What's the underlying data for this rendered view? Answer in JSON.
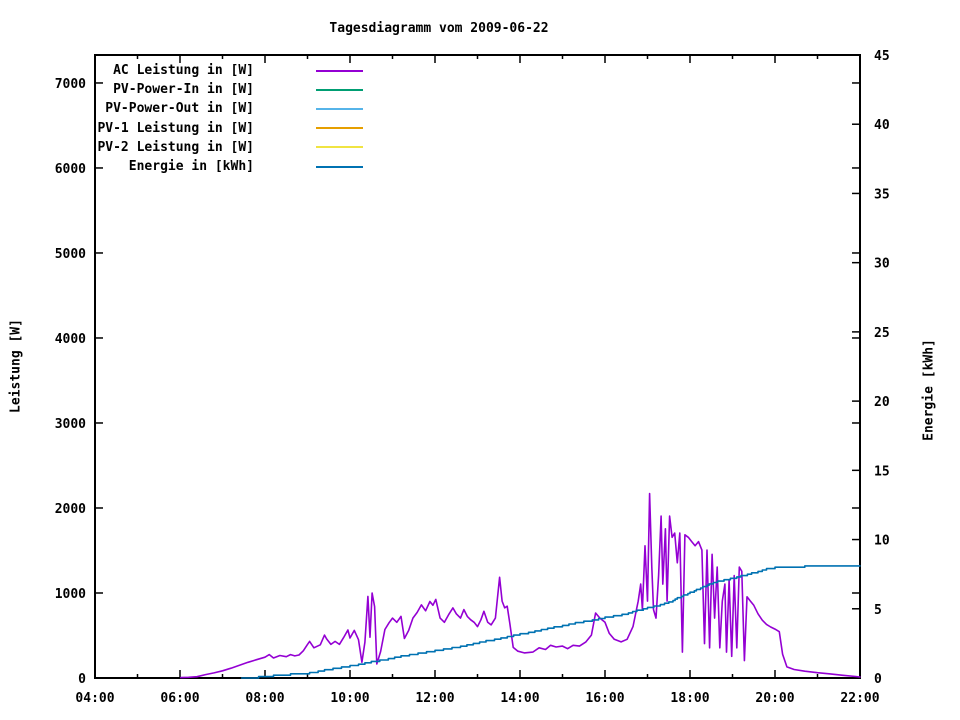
{
  "page": {
    "background": "#ffffff"
  },
  "chart": {
    "title": "Tagesdiagramm vom 2009-06-22",
    "left_axis_label": "Leistung [W]",
    "right_axis_label": "Energie [kWh]",
    "axis_color": "#000000"
  },
  "chart_data": {
    "type": "line",
    "title": "Tagesdiagramm vom 2009-06-22",
    "xlabel": "",
    "ylabel": "Leistung [W]",
    "y2label": "Energie [kWh]",
    "grid": false,
    "legend_position": "top-left-inside",
    "x_axis": {
      "unit": "time",
      "range_hours": [
        4,
        22
      ],
      "major_tick_hours": [
        4,
        6,
        8,
        10,
        12,
        14,
        16,
        18,
        20,
        22
      ],
      "major_tick_labels": [
        "04:00",
        "06:00",
        "08:00",
        "10:00",
        "12:00",
        "14:00",
        "16:00",
        "18:00",
        "20:00",
        "22:00"
      ],
      "minor_tick_hours": [
        5,
        7,
        9,
        11,
        13,
        15,
        17,
        19,
        21
      ]
    },
    "y_axis": {
      "label": "Leistung [W]",
      "range": [
        0,
        7329
      ],
      "ticks": [
        0,
        1000,
        2000,
        3000,
        4000,
        5000,
        6000,
        7000
      ]
    },
    "y2_axis": {
      "label": "Energie [kWh]",
      "range": [
        0,
        45
      ],
      "ticks": [
        0,
        5,
        10,
        15,
        20,
        25,
        30,
        35,
        40,
        45
      ]
    },
    "series": [
      {
        "name": "AC Leistung in [W]",
        "color": "#9400d3",
        "axis": "y",
        "style": "line",
        "points": [
          [
            6.02,
            5
          ],
          [
            6.2,
            8
          ],
          [
            6.4,
            15
          ],
          [
            6.6,
            40
          ],
          [
            6.8,
            60
          ],
          [
            7.0,
            85
          ],
          [
            7.2,
            115
          ],
          [
            7.4,
            150
          ],
          [
            7.6,
            185
          ],
          [
            7.8,
            215
          ],
          [
            8.0,
            245
          ],
          [
            8.1,
            275
          ],
          [
            8.2,
            235
          ],
          [
            8.35,
            265
          ],
          [
            8.5,
            250
          ],
          [
            8.6,
            275
          ],
          [
            8.7,
            260
          ],
          [
            8.8,
            270
          ],
          [
            8.9,
            320
          ],
          [
            9.0,
            395
          ],
          [
            9.05,
            430
          ],
          [
            9.15,
            355
          ],
          [
            9.3,
            390
          ],
          [
            9.4,
            505
          ],
          [
            9.45,
            460
          ],
          [
            9.55,
            395
          ],
          [
            9.65,
            430
          ],
          [
            9.75,
            395
          ],
          [
            9.85,
            475
          ],
          [
            9.95,
            565
          ],
          [
            10.0,
            470
          ],
          [
            10.1,
            560
          ],
          [
            10.2,
            450
          ],
          [
            10.28,
            185
          ],
          [
            10.35,
            420
          ],
          [
            10.42,
            960
          ],
          [
            10.47,
            480
          ],
          [
            10.52,
            1000
          ],
          [
            10.58,
            840
          ],
          [
            10.63,
            165
          ],
          [
            10.72,
            310
          ],
          [
            10.82,
            570
          ],
          [
            10.92,
            650
          ],
          [
            11.0,
            705
          ],
          [
            11.1,
            655
          ],
          [
            11.2,
            725
          ],
          [
            11.28,
            465
          ],
          [
            11.38,
            560
          ],
          [
            11.48,
            705
          ],
          [
            11.58,
            770
          ],
          [
            11.68,
            860
          ],
          [
            11.78,
            790
          ],
          [
            11.88,
            900
          ],
          [
            11.95,
            855
          ],
          [
            12.02,
            925
          ],
          [
            12.12,
            705
          ],
          [
            12.22,
            655
          ],
          [
            12.32,
            745
          ],
          [
            12.42,
            825
          ],
          [
            12.5,
            755
          ],
          [
            12.6,
            705
          ],
          [
            12.68,
            805
          ],
          [
            12.76,
            725
          ],
          [
            12.84,
            685
          ],
          [
            12.92,
            655
          ],
          [
            13.0,
            605
          ],
          [
            13.08,
            685
          ],
          [
            13.15,
            785
          ],
          [
            13.24,
            655
          ],
          [
            13.32,
            625
          ],
          [
            13.42,
            705
          ],
          [
            13.52,
            1185
          ],
          [
            13.58,
            905
          ],
          [
            13.64,
            825
          ],
          [
            13.7,
            845
          ],
          [
            13.76,
            645
          ],
          [
            13.84,
            360
          ],
          [
            13.95,
            315
          ],
          [
            14.1,
            295
          ],
          [
            14.3,
            305
          ],
          [
            14.45,
            355
          ],
          [
            14.6,
            335
          ],
          [
            14.72,
            385
          ],
          [
            14.85,
            365
          ],
          [
            15.0,
            375
          ],
          [
            15.12,
            345
          ],
          [
            15.25,
            385
          ],
          [
            15.4,
            375
          ],
          [
            15.55,
            425
          ],
          [
            15.68,
            505
          ],
          [
            15.78,
            765
          ],
          [
            15.88,
            705
          ],
          [
            16.0,
            655
          ],
          [
            16.1,
            525
          ],
          [
            16.22,
            455
          ],
          [
            16.38,
            425
          ],
          [
            16.52,
            455
          ],
          [
            16.66,
            605
          ],
          [
            16.78,
            905
          ],
          [
            16.84,
            1105
          ],
          [
            16.88,
            805
          ],
          [
            16.94,
            1555
          ],
          [
            17.0,
            905
          ],
          [
            17.05,
            2170
          ],
          [
            17.1,
            1305
          ],
          [
            17.14,
            805
          ],
          [
            17.2,
            705
          ],
          [
            17.26,
            1205
          ],
          [
            17.32,
            1905
          ],
          [
            17.36,
            1105
          ],
          [
            17.42,
            1755
          ],
          [
            17.46,
            905
          ],
          [
            17.52,
            1905
          ],
          [
            17.58,
            1655
          ],
          [
            17.64,
            1705
          ],
          [
            17.7,
            1355
          ],
          [
            17.76,
            1705
          ],
          [
            17.82,
            305
          ],
          [
            17.88,
            1685
          ],
          [
            17.96,
            1655
          ],
          [
            18.04,
            1605
          ],
          [
            18.12,
            1555
          ],
          [
            18.2,
            1605
          ],
          [
            18.28,
            1505
          ],
          [
            18.34,
            405
          ],
          [
            18.4,
            1505
          ],
          [
            18.46,
            355
          ],
          [
            18.52,
            1455
          ],
          [
            18.58,
            705
          ],
          [
            18.64,
            1305
          ],
          [
            18.7,
            355
          ],
          [
            18.76,
            905
          ],
          [
            18.82,
            1105
          ],
          [
            18.86,
            305
          ],
          [
            18.92,
            1155
          ],
          [
            18.98,
            255
          ],
          [
            19.04,
            1205
          ],
          [
            19.1,
            355
          ],
          [
            19.16,
            1305
          ],
          [
            19.22,
            1255
          ],
          [
            19.28,
            205
          ],
          [
            19.34,
            955
          ],
          [
            19.42,
            905
          ],
          [
            19.5,
            855
          ],
          [
            19.6,
            755
          ],
          [
            19.7,
            680
          ],
          [
            19.8,
            630
          ],
          [
            19.9,
            600
          ],
          [
            20.0,
            575
          ],
          [
            20.1,
            545
          ],
          [
            20.18,
            280
          ],
          [
            20.28,
            130
          ],
          [
            20.45,
            100
          ],
          [
            20.7,
            80
          ],
          [
            21.0,
            62
          ],
          [
            21.3,
            48
          ],
          [
            21.6,
            32
          ],
          [
            21.9,
            18
          ],
          [
            22.0,
            12
          ]
        ]
      },
      {
        "name": "PV-Power-In in [W]",
        "color": "#009e73",
        "axis": "y",
        "style": "line",
        "points": []
      },
      {
        "name": "PV-Power-Out in [W]",
        "color": "#56b4e9",
        "axis": "y",
        "style": "line",
        "points": []
      },
      {
        "name": "PV-1 Leistung in [W]",
        "color": "#e69f00",
        "axis": "y",
        "style": "line",
        "points": []
      },
      {
        "name": "PV-2 Leistung in [W]",
        "color": "#f0e442",
        "axis": "y",
        "style": "line",
        "points": []
      },
      {
        "name": "Energie in [kWh]",
        "color": "#0072b2",
        "axis": "y2",
        "style": "steps-quantized",
        "quantum": 0.1,
        "points": [
          [
            7.45,
            0.0
          ],
          [
            7.8,
            0.05
          ],
          [
            8.0,
            0.1
          ],
          [
            8.3,
            0.18
          ],
          [
            8.6,
            0.25
          ],
          [
            9.0,
            0.32
          ],
          [
            9.3,
            0.5
          ],
          [
            9.6,
            0.65
          ],
          [
            10.0,
            0.85
          ],
          [
            10.4,
            1.1
          ],
          [
            10.8,
            1.3
          ],
          [
            11.2,
            1.55
          ],
          [
            11.6,
            1.75
          ],
          [
            12.0,
            1.95
          ],
          [
            12.4,
            2.15
          ],
          [
            12.8,
            2.4
          ],
          [
            13.2,
            2.65
          ],
          [
            13.6,
            2.9
          ],
          [
            14.0,
            3.15
          ],
          [
            14.4,
            3.4
          ],
          [
            14.8,
            3.65
          ],
          [
            15.2,
            3.9
          ],
          [
            15.6,
            4.1
          ],
          [
            16.0,
            4.35
          ],
          [
            16.4,
            4.55
          ],
          [
            16.8,
            4.9
          ],
          [
            17.2,
            5.2
          ],
          [
            17.5,
            5.45
          ],
          [
            17.8,
            5.9
          ],
          [
            18.1,
            6.3
          ],
          [
            18.4,
            6.7
          ],
          [
            18.7,
            7.0
          ],
          [
            19.0,
            7.2
          ],
          [
            19.2,
            7.35
          ],
          [
            19.5,
            7.6
          ],
          [
            19.8,
            7.85
          ],
          [
            20.0,
            7.95
          ],
          [
            20.3,
            8.03
          ],
          [
            20.7,
            8.05
          ],
          [
            21.1,
            8.1
          ],
          [
            21.5,
            8.1
          ],
          [
            22.0,
            8.1
          ]
        ]
      }
    ]
  }
}
